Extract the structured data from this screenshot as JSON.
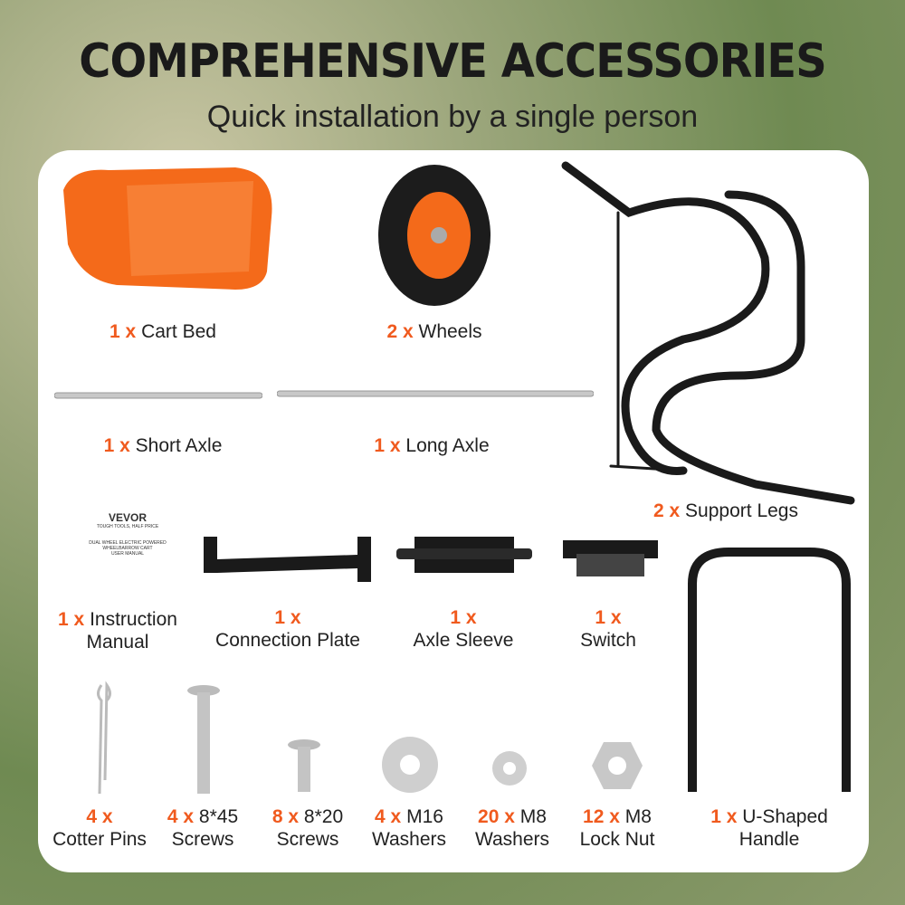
{
  "header": {
    "title": "COMPREHENSIVE ACCESSORIES",
    "subtitle": "Quick installation by a single person"
  },
  "manual_cover": {
    "brand": "VEVOR",
    "tagline": "TOUGH TOOLS, HALF PRICE",
    "title1": "DUAL WHEEL ELECTRIC POWERED",
    "title2": "WHEELBARROW CART",
    "title3": "USER MANUAL"
  },
  "accent_color": "#f05a1e",
  "items": [
    {
      "qty": "1 x",
      "name": "Cart Bed"
    },
    {
      "qty": "2 x",
      "name": "Wheels"
    },
    {
      "qty": "1 x",
      "name": "Short Axle"
    },
    {
      "qty": "1 x",
      "name": "Long Axle"
    },
    {
      "qty": "2 x",
      "name": "Support Legs"
    },
    {
      "qty": "1 x",
      "name": "Instruction",
      "name2": "Manual"
    },
    {
      "qty": "1 x",
      "name": "Connection Plate"
    },
    {
      "qty": "1 x",
      "name": "Axle Sleeve"
    },
    {
      "qty": "1 x",
      "name": "Switch"
    },
    {
      "qty": "1 x",
      "name": "U-Shaped",
      "name2": "Handle"
    },
    {
      "qty": "4 x",
      "name": "Cotter Pins"
    },
    {
      "qty": "4 x",
      "spec": "8*45",
      "name": "Screws"
    },
    {
      "qty": "8 x",
      "spec": "8*20",
      "name": "Screws"
    },
    {
      "qty": "4 x",
      "spec": "M16",
      "name": "Washers"
    },
    {
      "qty": "20 x",
      "spec": "M8",
      "name": "Washers"
    },
    {
      "qty": "12 x",
      "spec": "M8",
      "name": "Lock Nut"
    }
  ]
}
